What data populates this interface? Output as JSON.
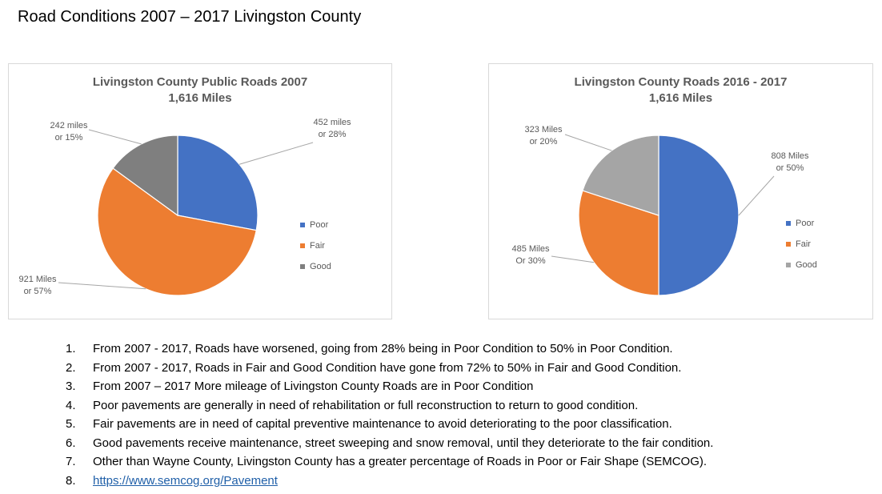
{
  "page_title": "Road Conditions 2007 – 2017 Livingston County",
  "colors": {
    "poor": "#4472c4",
    "fair": "#ed7d31",
    "good_2007": "#7f7f7f",
    "good_2017": "#a5a5a5",
    "text": "#595959"
  },
  "chart_data": [
    {
      "type": "pie",
      "title_line1": "Livingston County Public Roads 2007",
      "title_line2": "1,616 Miles",
      "legend": [
        "Poor",
        "Fair",
        "Good"
      ],
      "slices": [
        {
          "name": "Poor",
          "value": 452,
          "percent": 28,
          "label_line1": "452 miles",
          "label_line2": "or 28%"
        },
        {
          "name": "Fair",
          "value": 921,
          "percent": 57,
          "label_line1": "921 Miles",
          "label_line2": "or 57%"
        },
        {
          "name": "Good",
          "value": 242,
          "percent": 15,
          "label_line1": "242 miles",
          "label_line2": "or 15%"
        }
      ]
    },
    {
      "type": "pie",
      "title_line1": "Livingston County Roads 2016 - 2017",
      "title_line2": "1,616 Miles",
      "legend": [
        "Poor",
        "Fair",
        "Good"
      ],
      "slices": [
        {
          "name": "Poor",
          "value": 808,
          "percent": 50,
          "label_line1": "808 Miles",
          "label_line2": "or 50%"
        },
        {
          "name": "Fair",
          "value": 485,
          "percent": 30,
          "label_line1": "485 Miles",
          "label_line2": "Or 30%"
        },
        {
          "name": "Good",
          "value": 323,
          "percent": 20,
          "label_line1": "323 Miles",
          "label_line2": "or 20%"
        }
      ]
    }
  ],
  "notes": [
    {
      "num": "1.",
      "text": "From 2007 - 2017,  Roads have worsened, going from 28% being in Poor Condition to 50% in Poor Condition."
    },
    {
      "num": "2.",
      "text": "From 2007 - 2017, Roads in Fair and Good Condition have gone from 72% to 50% in Fair and Good Condition."
    },
    {
      "num": "3.",
      "text": "From 2007 – 2017 More mileage of Livingston County Roads  are in Poor Condition"
    },
    {
      "num": "4.",
      "text": "Poor pavements are generally in need of rehabilitation or full reconstruction to return to good condition."
    },
    {
      "num": "5.",
      "text": "Fair pavements are in need of capital preventive maintenance to avoid deteriorating to the poor classification."
    },
    {
      "num": "6.",
      "text": "Good pavements receive maintenance, street sweeping and snow removal, until they deteriorate to the fair condition."
    },
    {
      "num": "7.",
      "text": "Other than Wayne County, Livingston County has a greater percentage of Roads in Poor or Fair Shape (SEMCOG)."
    }
  ],
  "link": {
    "num": "8.",
    "text": "https://www.semcog.org/Pavement"
  }
}
